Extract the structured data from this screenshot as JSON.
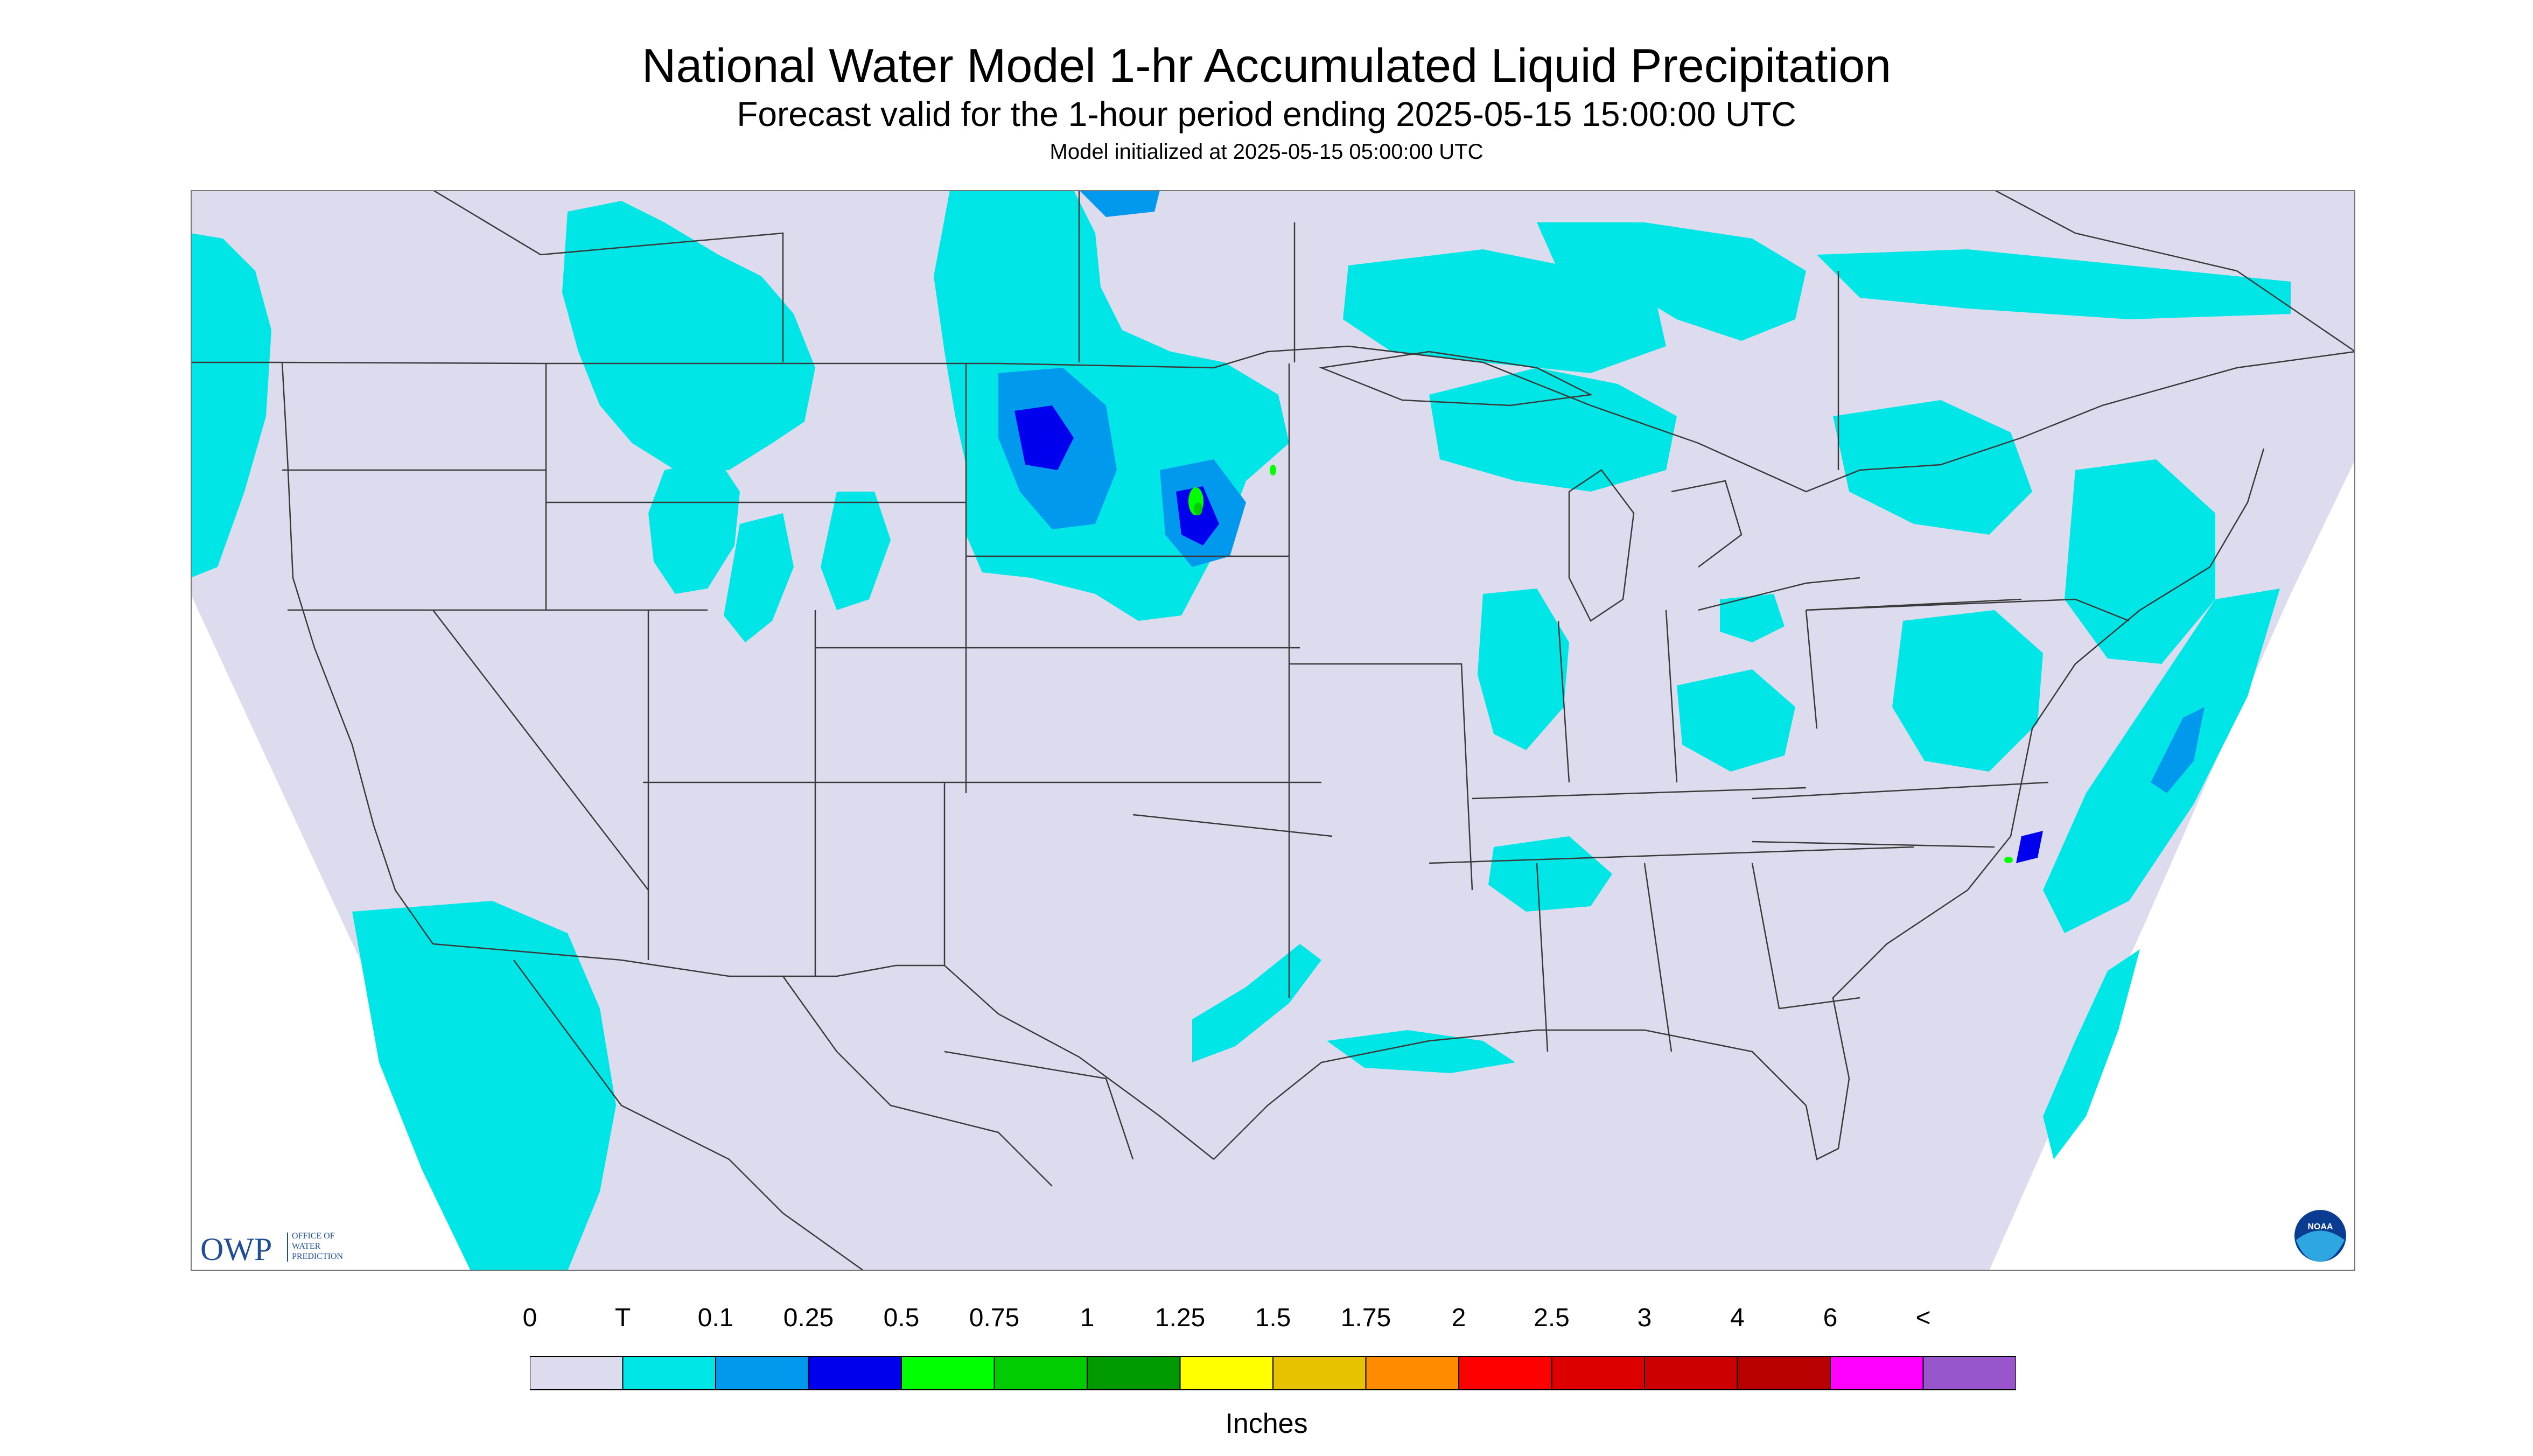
{
  "title": "National Water Model 1-hr Accumulated Liquid Precipitation",
  "subtitle": "Forecast valid for the 1-hour period ending 2025-05-15 15:00:00 UTC",
  "init_line": "Model initialized at 2025-05-15 05:00:00 UTC",
  "logos": {
    "owp": {
      "letters": "OWP",
      "line1": "OFFICE OF",
      "line2": "WATER",
      "line3": "PREDICTION"
    },
    "noaa": {
      "text": "NOAA"
    }
  },
  "colors": {
    "background": "#dcdcee",
    "outside_domain": "#ffffff",
    "boundary": "#3a3a3a",
    "trace": "#00e6e6",
    "p01": "#0099ee",
    "p025": "#0000ee",
    "p05": "#00ff00",
    "p075": "#00cc00",
    "p1": "#009900"
  },
  "legend": {
    "labels": [
      "0",
      "T",
      "0.1",
      "0.25",
      "0.5",
      "0.75",
      "1",
      "1.25",
      "1.5",
      "1.75",
      "2",
      "2.5",
      "3",
      "4",
      "6",
      "<"
    ],
    "colors": [
      "#dcdcee",
      "#00e6e6",
      "#0099ee",
      "#0000ee",
      "#00ff00",
      "#00cc00",
      "#009900",
      "#ffff00",
      "#e6c200",
      "#ff8c00",
      "#ff0000",
      "#dd0000",
      "#cc0000",
      "#b80000",
      "#ff00ff",
      "#9955cc"
    ],
    "units": "Inches"
  }
}
